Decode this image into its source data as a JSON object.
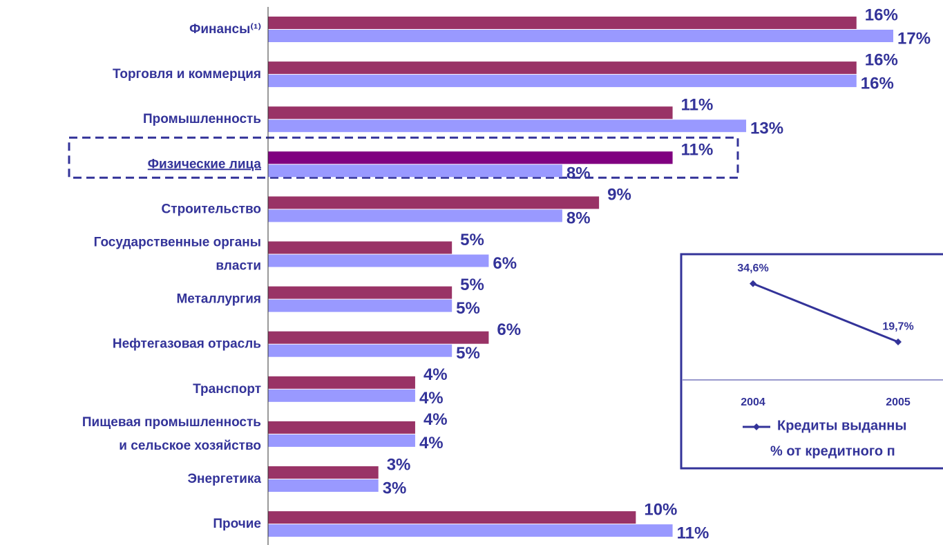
{
  "chart_data": [
    {
      "type": "hbar",
      "categories": [
        "Финансы⁽¹⁾",
        "Торговля и коммерция",
        "Промышленность",
        "Физические лица",
        "Строительство",
        "Государственные органы\nвласти",
        "Металлургия",
        "Нефтегазовая отрасль",
        "Транспорт",
        "Пищевая промышленность\nи сельское хозяйство",
        "Энергетика",
        "Прочие"
      ],
      "series": [
        {
          "color": "#993366",
          "values": [
            16,
            16,
            11,
            11,
            9,
            5,
            5,
            6,
            4,
            4,
            3,
            10
          ],
          "value_labels": [
            "16%",
            "16%",
            "11%",
            "11%",
            "9%",
            "5%",
            "5%",
            "6%",
            "4%",
            "4%",
            "3%",
            "10%"
          ]
        },
        {
          "color": "#9999ff",
          "values": [
            17,
            16,
            13,
            8,
            8,
            6,
            5,
            5,
            4,
            4,
            3,
            11
          ],
          "value_labels": [
            "17%",
            "16%",
            "13%",
            "8%",
            "8%",
            "6%",
            "5%",
            "5%",
            "4%",
            "4%",
            "3%",
            "11%"
          ]
        }
      ],
      "highlight": {
        "category": "Физические лица",
        "color": "#800080"
      },
      "xlim": [
        0,
        17
      ]
    },
    {
      "type": "line",
      "categories": [
        "2004",
        "2005"
      ],
      "series": [
        {
          "name": "Кредиты выданны\n% от кредитного п",
          "color": "#333399",
          "values": [
            34.6,
            19.7
          ],
          "value_labels": [
            "34,6%",
            "19,7%"
          ]
        }
      ],
      "ylim": [
        10,
        40
      ]
    }
  ]
}
